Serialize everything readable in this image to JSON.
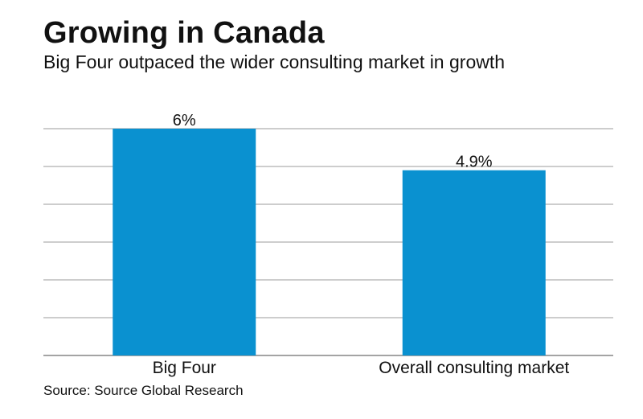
{
  "header": {
    "title": "Growing in Canada",
    "subtitle": "Big Four outpaced the wider consulting market in growth"
  },
  "footer": {
    "source": "Source: Source Global Research"
  },
  "colors": {
    "bar": "#0a91d0"
  },
  "chart_data": {
    "type": "bar",
    "title": "Growing in Canada",
    "subtitle": "Big Four outpaced the wider consulting market in growth",
    "categories": [
      "Big Four",
      "Overall consulting market"
    ],
    "values": [
      6,
      4.9
    ],
    "data_labels": [
      "6%",
      "4.9%"
    ],
    "xlabel": "",
    "ylabel": "",
    "ylim": [
      0,
      6
    ],
    "grid": true,
    "gridlines": 6,
    "legend": "none"
  }
}
